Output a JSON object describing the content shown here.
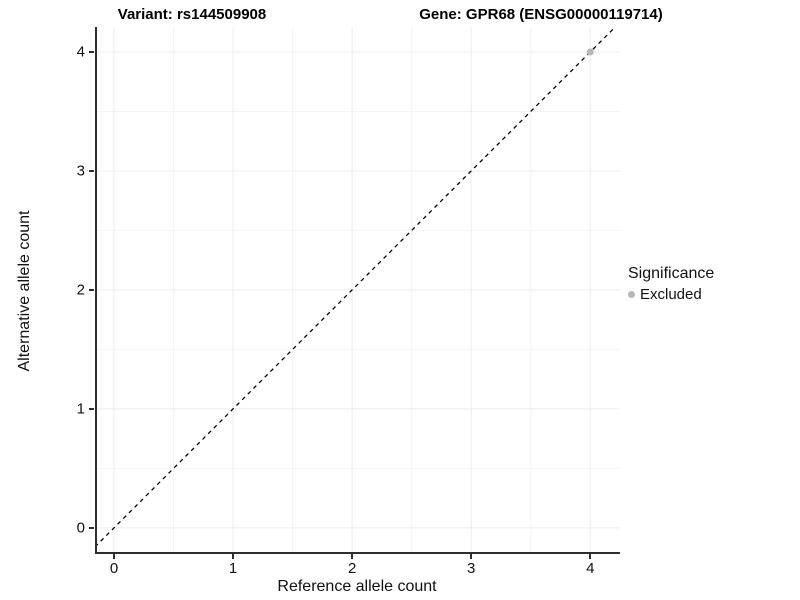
{
  "titles": {
    "variant": "Variant: rs144509908",
    "gene": "Gene: GPR68 (ENSG00000119714)"
  },
  "legend": {
    "title": "Significance",
    "items": [
      {
        "label": "Excluded",
        "color": "#b8b8b8"
      }
    ]
  },
  "colors": {
    "background": "#ffffff",
    "grid_major": "#ececec",
    "grid_minor": "#f4f4f4",
    "axis_line": "#2e2e2e",
    "reference_line": "#000000",
    "excluded_point": "#b8b8b8",
    "text": "#111111"
  },
  "chart_data": {
    "type": "scatter",
    "title": "Variant: rs144509908 | Gene: GPR68 (ENSG00000119714)",
    "xlabel": "Reference allele count",
    "ylabel": "Alternative allele count",
    "xlim": [
      -0.16,
      4.25
    ],
    "ylim": [
      -0.22,
      4.21
    ],
    "xticks": [
      0,
      1,
      2,
      3,
      4
    ],
    "yticks": [
      0,
      1,
      2,
      3,
      4
    ],
    "grid": "major+minor",
    "legend_position": "right",
    "series": [
      {
        "name": "Excluded",
        "color": "#b8b8b8",
        "points": [
          {
            "x": 4,
            "y": 4
          }
        ]
      }
    ],
    "reference_line": {
      "slope": 1,
      "intercept": 0,
      "style": "dashed",
      "color": "#000000"
    }
  }
}
